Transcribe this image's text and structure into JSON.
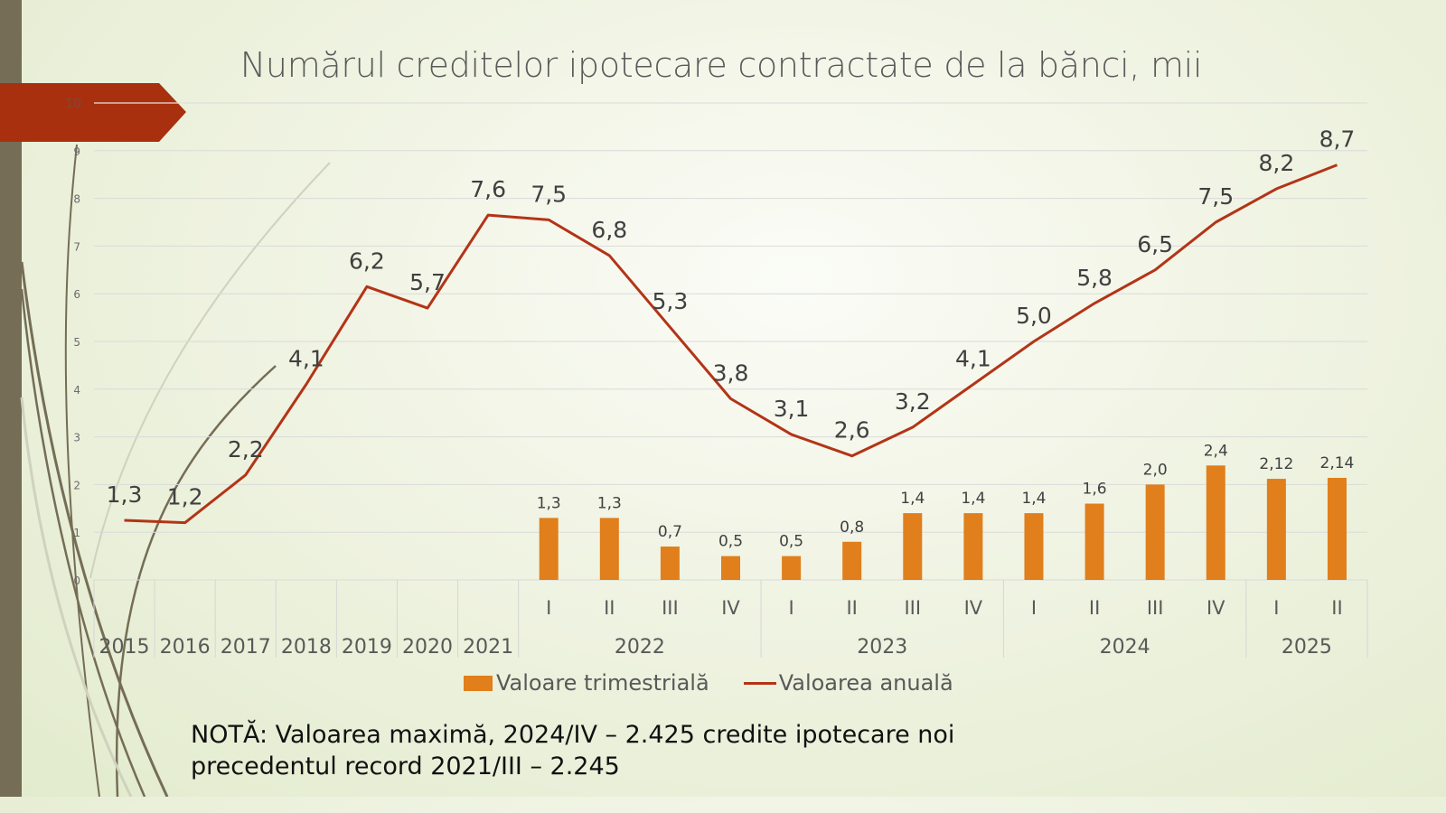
{
  "slide": {
    "title": "Numărul creditelor ipotecare contractate de la bănci, mii",
    "note_line1": "NOTĂ: Valoarea maximă,  2024/IV – 2.425 credite ipotecare noi",
    "note_line2": "precedentul record 2021/III – 2.245"
  },
  "chart_data": {
    "type": "bar+line",
    "title": "Numărul creditelor ipotecare contractate de la bănci, mii",
    "xlabel": "",
    "ylabel": "",
    "ylim": [
      0,
      10
    ],
    "yticks": [
      "0",
      "1",
      "2",
      "3",
      "4",
      "5",
      "6",
      "7",
      "8",
      "9",
      "10"
    ],
    "grid": true,
    "legend_position": "bottom",
    "categories": [
      {
        "label": "2015",
        "group": ""
      },
      {
        "label": "2016",
        "group": ""
      },
      {
        "label": "2017",
        "group": ""
      },
      {
        "label": "2018",
        "group": ""
      },
      {
        "label": "2019",
        "group": ""
      },
      {
        "label": "2020",
        "group": ""
      },
      {
        "label": "2021",
        "group": ""
      },
      {
        "label": "I",
        "group": "2022"
      },
      {
        "label": "II",
        "group": "2022"
      },
      {
        "label": "III",
        "group": "2022"
      },
      {
        "label": "IV",
        "group": "2022"
      },
      {
        "label": "I",
        "group": "2023"
      },
      {
        "label": "II",
        "group": "2023"
      },
      {
        "label": "III",
        "group": "2023"
      },
      {
        "label": "IV",
        "group": "2023"
      },
      {
        "label": "I",
        "group": "2024"
      },
      {
        "label": "II",
        "group": "2024"
      },
      {
        "label": "III",
        "group": "2024"
      },
      {
        "label": "IV",
        "group": "2024"
      },
      {
        "label": "I",
        "group": "2025"
      },
      {
        "label": "II",
        "group": "2025"
      }
    ],
    "groups": [
      "2022",
      "2023",
      "2024",
      "2025"
    ],
    "series": [
      {
        "name": "Valoare trimestrială",
        "type": "bar",
        "color": "#e07f1b",
        "values": [
          null,
          null,
          null,
          null,
          null,
          null,
          null,
          1.3,
          1.3,
          0.7,
          0.5,
          0.5,
          0.8,
          1.4,
          1.4,
          1.4,
          1.6,
          2.0,
          2.4,
          2.12,
          2.14
        ],
        "labels": [
          "",
          "",
          "",
          "",
          "",
          "",
          "",
          "1,3",
          "1,3",
          "0,7",
          "0,5",
          "0,5",
          "0,8",
          "1,4",
          "1,4",
          "1,4",
          "1,6",
          "2,0",
          "2,4",
          "2,12",
          "2,14"
        ]
      },
      {
        "name": "Valoarea anuală",
        "type": "line",
        "color": "#b33417",
        "values": [
          1.25,
          1.2,
          2.2,
          4.1,
          6.15,
          5.7,
          7.65,
          7.55,
          6.8,
          5.3,
          3.8,
          3.05,
          2.6,
          3.2,
          4.1,
          5.0,
          5.8,
          6.5,
          7.5,
          8.2,
          8.7
        ],
        "labels": [
          "1,3",
          "1,2",
          "2,2",
          "4,1",
          "6,2",
          "5,7",
          "7,6",
          "7,5",
          "6,8",
          "5,3",
          "3,8",
          "3,1",
          "2,6",
          "3,2",
          "4,1",
          "5,0",
          "5,8",
          "6,5",
          "7,5",
          "8,2",
          "8,7"
        ]
      }
    ]
  },
  "legend": {
    "bar_label": "Valoare trimestrială",
    "line_label": "Valoarea anuală"
  }
}
